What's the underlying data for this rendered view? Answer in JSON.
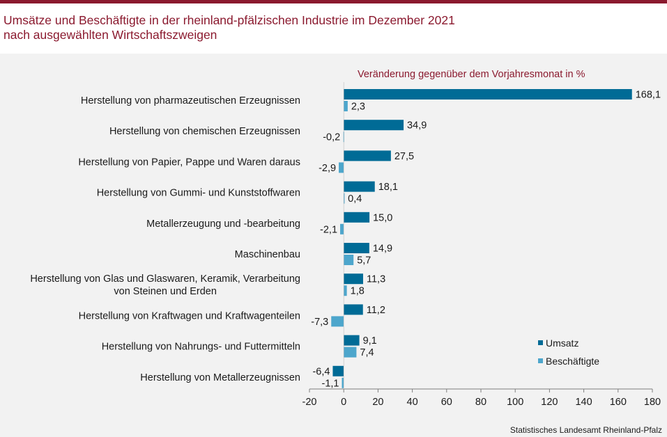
{
  "title": {
    "line1": "Umsätze und Beschäftigte in der rheinland-pfälzischen Industrie im Dezember 2021",
    "line2": "nach ausgewählten Wirtschaftszweigen"
  },
  "source": "Statistisches Landesamt Rheinland-Pfalz",
  "colors": {
    "brand": "#8b1a2f",
    "umsatz": "#006b96",
    "beschaeftigte": "#4da6cc",
    "background": "#f2f2f2"
  },
  "chart_data": {
    "type": "bar",
    "orientation": "horizontal",
    "subtitle": "Veränderung gegenüber dem Vorjahresmonat in %",
    "categories": [
      [
        "Herstellung von pharmazeutischen Erzeugnissen"
      ],
      [
        "Herstellung von chemischen Erzeugnissen"
      ],
      [
        "Herstellung von Papier, Pappe und Waren daraus"
      ],
      [
        "Herstellung von Gummi- und Kunststoffwaren"
      ],
      [
        "Metallerzeugung und -bearbeitung"
      ],
      [
        "Maschinenbau"
      ],
      [
        "Herstellung von Glas und Glaswaren, Keramik, Verarbeitung",
        "von Steinen und Erden"
      ],
      [
        "Herstellung von Kraftwagen und Kraftwagenteilen"
      ],
      [
        "Herstellung von Nahrungs- und Futtermitteln"
      ],
      [
        "Herstellung von Metallerzeugnissen"
      ]
    ],
    "series": [
      {
        "name": "Umsatz",
        "values": [
          168.1,
          34.9,
          27.5,
          18.1,
          15.0,
          14.9,
          11.3,
          11.2,
          9.1,
          -6.4
        ],
        "labels": [
          "168,1",
          "34,9",
          "27,5",
          "18,1",
          "15,0",
          "14,9",
          "11,3",
          "11,2",
          "9,1",
          "-6,4"
        ]
      },
      {
        "name": "Beschäftigte",
        "values": [
          2.3,
          -0.2,
          -2.9,
          0.4,
          -2.1,
          5.7,
          1.8,
          -7.3,
          7.4,
          -1.1
        ],
        "labels": [
          "2,3",
          "-0,2",
          "-2,9",
          "0,4",
          "-2,1",
          "5,7",
          "1,8",
          "-7,3",
          "7,4",
          "-1,1"
        ]
      }
    ],
    "xlim": [
      -20,
      180
    ],
    "xticks": [
      -20,
      0,
      20,
      40,
      60,
      80,
      100,
      120,
      140,
      160,
      180
    ],
    "legend_position": "bottom-right",
    "grid": false
  }
}
